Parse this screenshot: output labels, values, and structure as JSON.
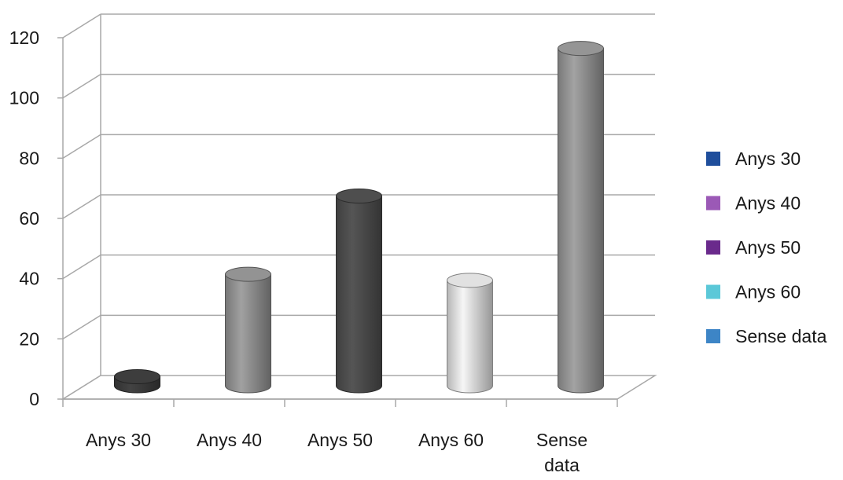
{
  "chart_data": {
    "type": "bar",
    "title": "",
    "xlabel": "",
    "ylabel": "",
    "categories": [
      "Anys 30",
      "Anys 40",
      "Anys 50",
      "Anys 60",
      "Sense data"
    ],
    "values": [
      3,
      37,
      63,
      35,
      112
    ],
    "ylim": [
      0,
      120
    ],
    "yticks": [
      0,
      20,
      40,
      60,
      80,
      100,
      120
    ],
    "grid": true,
    "legend_position": "right",
    "legend": [
      {
        "label": "Anys 30",
        "color": "#1f4e9c"
      },
      {
        "label": "Anys 40",
        "color": "#9b59b6"
      },
      {
        "label": "Anys 50",
        "color": "#6a2a8c"
      },
      {
        "label": "Anys 60",
        "color": "#5bc8d8"
      },
      {
        "label": "Sense data",
        "color": "#3d85c6"
      }
    ],
    "bar_colors": [
      "#3a3a3a",
      "#8c8c8c",
      "#4a4a4a",
      "#d6d6d6",
      "#8e8e8e"
    ]
  }
}
